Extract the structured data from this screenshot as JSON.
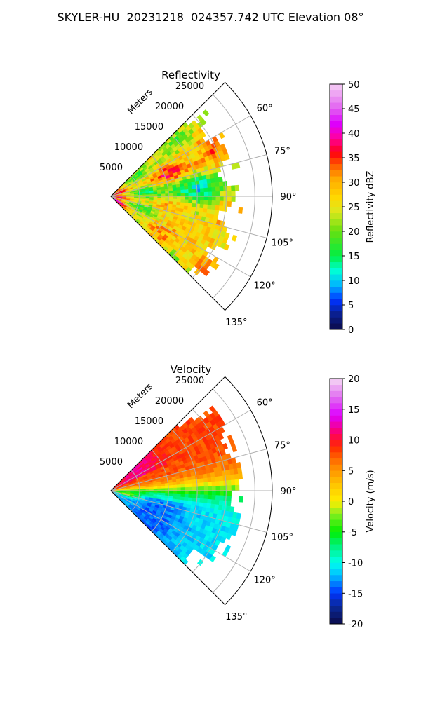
{
  "figure_title": "SKYLER-HU  20231218  024357.742 UTC Elevation 08°",
  "chart_data": [
    {
      "type": "heatmap",
      "subtype": "polar sector (PPI radar scan)",
      "title": "Reflectivity",
      "range_label": "Meters",
      "range_ticks": [
        "5000",
        "10000",
        "15000",
        "20000",
        "25000"
      ],
      "range_values": [
        5000,
        10000,
        15000,
        20000,
        25000
      ],
      "r_max": 28000,
      "azimuth_range_deg": [
        45,
        135
      ],
      "azimuth_ticks": [
        "60°",
        "75°",
        "90°",
        "105°",
        "120°",
        "135°"
      ],
      "azimuth_values": [
        60,
        75,
        90,
        105,
        120,
        135
      ],
      "grid": true,
      "colorbar": {
        "label": "Reflectivity dBZ",
        "ticks": [
          "0",
          "5",
          "10",
          "15",
          "20",
          "25",
          "30",
          "35",
          "40",
          "45",
          "50"
        ],
        "vmin": 0,
        "vmax": 50,
        "colormap": "radar reflectivity (navy-blue-cyan-green-yellow-orange-red-magenta-pink)"
      },
      "field_description_values": {
        "typical_dbz": [
          18,
          32
        ],
        "max_dbz": 38
      }
    },
    {
      "type": "heatmap",
      "subtype": "polar sector (PPI radar scan)",
      "title": "Velocity",
      "range_label": "Meters",
      "range_ticks": [
        "5000",
        "10000",
        "15000",
        "20000",
        "25000"
      ],
      "range_values": [
        5000,
        10000,
        15000,
        20000,
        25000
      ],
      "r_max": 28000,
      "azimuth_range_deg": [
        45,
        135
      ],
      "azimuth_ticks": [
        "60°",
        "75°",
        "90°",
        "105°",
        "120°",
        "135°"
      ],
      "azimuth_values": [
        60,
        75,
        90,
        105,
        120,
        135
      ],
      "grid": true,
      "colorbar": {
        "label": "Velocity (m/s)",
        "ticks": [
          "-20",
          "-15",
          "-10",
          "-5",
          "0",
          "5",
          "10",
          "15",
          "20"
        ],
        "vmin": -20,
        "vmax": 20,
        "colormap": "diverging radar velocity (navy-blue-cyan-green-yellow-orange-red-magenta-pink)"
      },
      "field_description_values": {
        "northern_sector_mps": [
          8,
          12
        ],
        "central_mps": [
          -1,
          2
        ],
        "southern_sector_mps": [
          -12,
          -6
        ]
      }
    }
  ]
}
